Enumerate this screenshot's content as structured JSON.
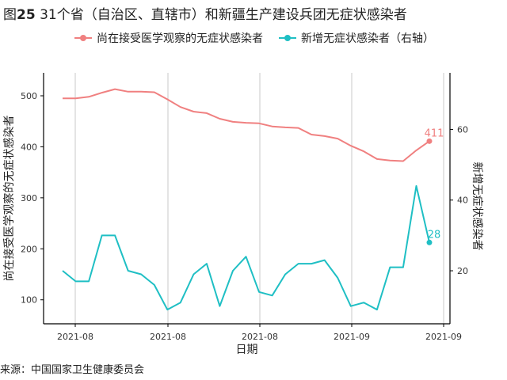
{
  "title": {
    "prefix": "图",
    "number": "25",
    "text": " 31个省（自治区、直辖市）和新疆生产建设兵团无症状感染者"
  },
  "source": "来源：中国国家卫生健康委员会",
  "colors": {
    "left": "#F08080",
    "right": "#1FBFC4",
    "grid": "#c8c8c8",
    "axis": "#000000"
  },
  "chart_data": {
    "type": "line",
    "xlabel": "日期",
    "ylabel_left": "尚在接受医学观察的无症状感染者",
    "ylabel_right": "新增无症状感染者",
    "x_ticks": [
      "2021-08",
      "2021-08",
      "2021-08",
      "2021-09",
      "2021-09"
    ],
    "ylim_left": [
      53,
      545
    ],
    "yticks_left": [
      100,
      200,
      300,
      400,
      500
    ],
    "ylim_right": [
      5,
      76
    ],
    "yticks_right": [
      20,
      40,
      60
    ],
    "grid": "vertical",
    "legend_position": "top",
    "series": [
      {
        "name": "尚在接受医学观察的无症状感染者",
        "axis": "left",
        "values": [
          495,
          495,
          498,
          506,
          513,
          508,
          508,
          507,
          493,
          478,
          469,
          466,
          455,
          449,
          447,
          446,
          440,
          438,
          437,
          424,
          421,
          416,
          402,
          391,
          376,
          373,
          372,
          393,
          411
        ],
        "end_label": "411"
      },
      {
        "name": "新增无症状感染者（右轴）",
        "axis": "right",
        "values": [
          20,
          17,
          17,
          30,
          30,
          20,
          19,
          16,
          9,
          11,
          19,
          22,
          10,
          20,
          24,
          14,
          13,
          19,
          22,
          22,
          23,
          18,
          10,
          11,
          9,
          21,
          21,
          44,
          28
        ],
        "end_label": "28"
      }
    ]
  }
}
